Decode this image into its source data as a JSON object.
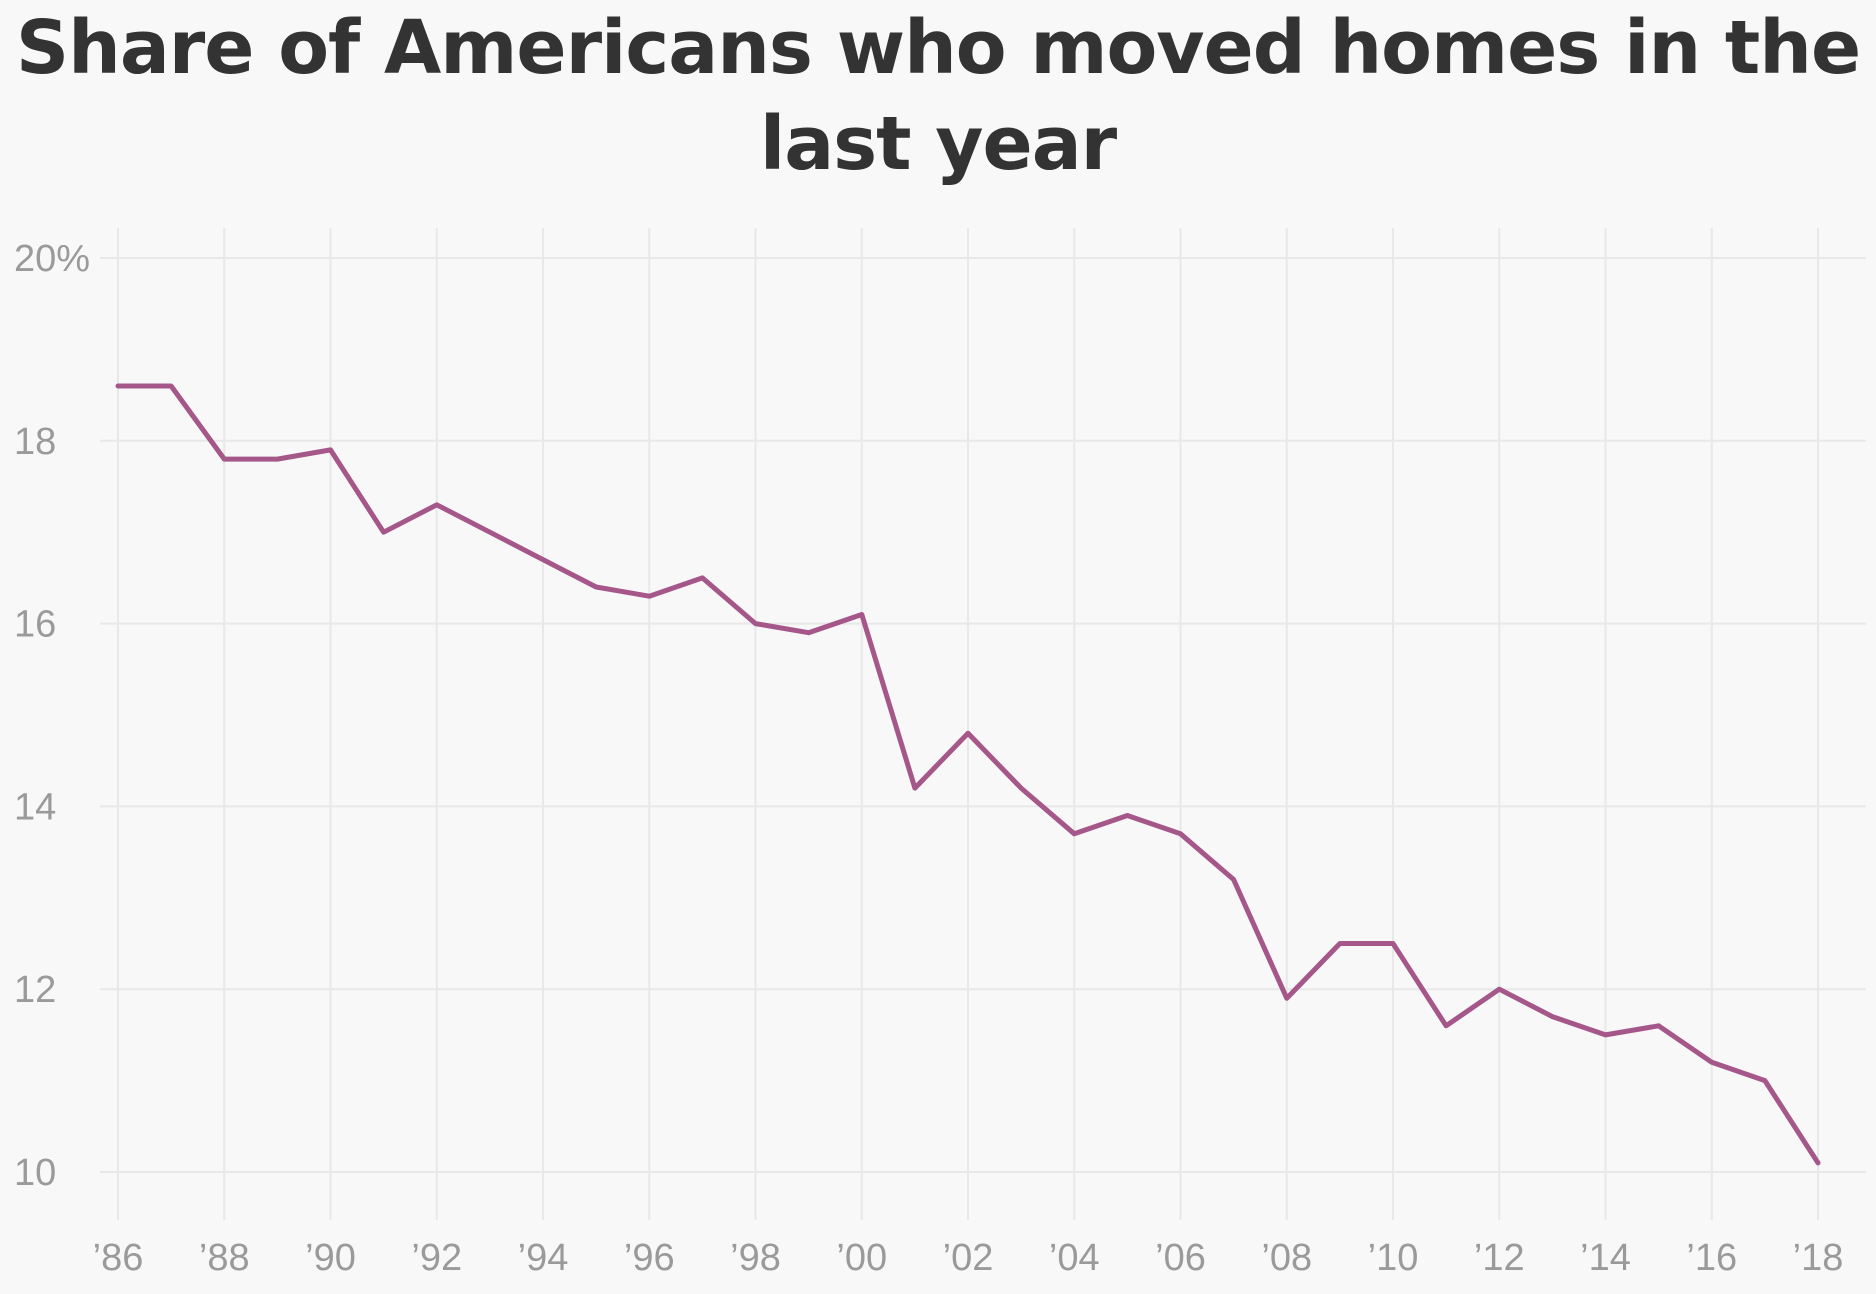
{
  "chart_data": {
    "type": "line",
    "title_line1": "Share of Americans who moved homes in the",
    "title_line2": "last year",
    "xlabel": "",
    "ylabel": "",
    "x": [
      1986,
      1987,
      1988,
      1989,
      1990,
      1991,
      1992,
      1993,
      1994,
      1995,
      1996,
      1997,
      1998,
      1999,
      2000,
      2001,
      2002,
      2003,
      2004,
      2005,
      2006,
      2007,
      2008,
      2009,
      2010,
      2011,
      2012,
      2013,
      2014,
      2015,
      2016,
      2017,
      2018
    ],
    "series": [
      {
        "values": [
          18.6,
          18.6,
          17.8,
          17.8,
          17.9,
          17.0,
          17.3,
          17.0,
          16.7,
          16.4,
          16.3,
          16.5,
          16.0,
          15.9,
          16.1,
          14.2,
          14.8,
          14.2,
          13.7,
          13.9,
          13.7,
          13.2,
          11.9,
          12.5,
          12.5,
          11.6,
          12.0,
          11.7,
          11.5,
          11.6,
          11.2,
          11.0,
          10.1
        ],
        "color": "#a6578a"
      }
    ],
    "xlim": [
      1986,
      2018
    ],
    "ylim": [
      10,
      20
    ],
    "x_ticks": [
      1986,
      1988,
      1990,
      1992,
      1994,
      1996,
      1998,
      2000,
      2002,
      2004,
      2006,
      2008,
      2010,
      2012,
      2014,
      2016,
      2018
    ],
    "x_tick_labels": [
      "’86",
      "’88",
      "’90",
      "’92",
      "’94",
      "’96",
      "’98",
      "’00",
      "’02",
      "’04",
      "’06",
      "’08",
      "’10",
      "’12",
      "’14",
      "’16",
      "’18"
    ],
    "y_ticks": [
      20,
      18,
      16,
      14,
      12,
      10
    ],
    "y_tick_labels": [
      "20%",
      "18",
      "16",
      "14",
      "12",
      "10"
    ],
    "grid": true,
    "legend": "none"
  }
}
